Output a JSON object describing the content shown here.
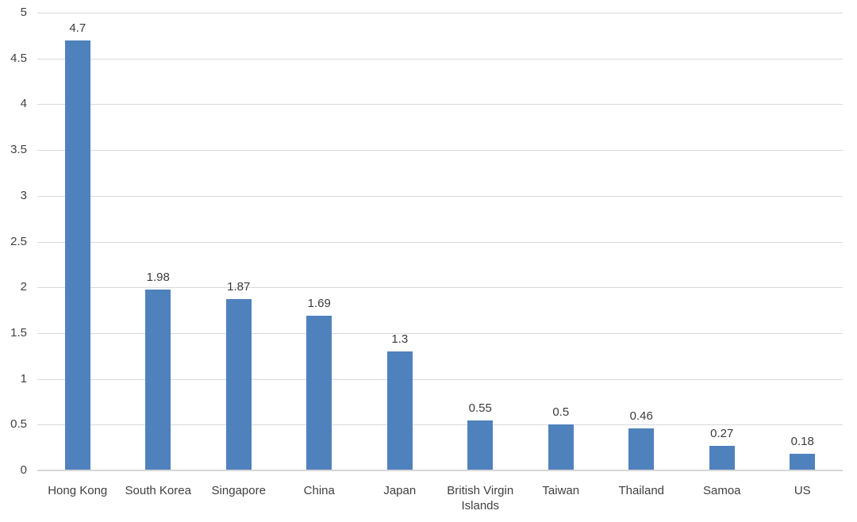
{
  "chart_data": {
    "type": "bar",
    "title": "",
    "xlabel": "",
    "ylabel": "",
    "categories": [
      "Hong Kong",
      "South Korea",
      "Singapore",
      "China",
      "Japan",
      "British Virgin Islands",
      "Taiwan",
      "Thailand",
      "Samoa",
      "US"
    ],
    "values": [
      4.7,
      1.98,
      1.87,
      1.69,
      1.3,
      0.55,
      0.5,
      0.46,
      0.27,
      0.18
    ],
    "value_labels": [
      "4.7",
      "1.98",
      "1.87",
      "1.69",
      "1.3",
      "0.55",
      "0.5",
      "0.46",
      "0.27",
      "0.18"
    ],
    "ylim": [
      0,
      5
    ],
    "ytick_step": 0.5,
    "ytick_labels": [
      "5",
      "4.5",
      "4",
      "3.5",
      "3",
      "2.5",
      "2",
      "1.5",
      "1",
      "0.5",
      "0"
    ],
    "grid": true,
    "legend_position": "none",
    "colors": {
      "bar": "#4F81BD",
      "gridline": "#d9d9d9",
      "axis_line": "#d6d6d6",
      "text": "#404040"
    }
  }
}
